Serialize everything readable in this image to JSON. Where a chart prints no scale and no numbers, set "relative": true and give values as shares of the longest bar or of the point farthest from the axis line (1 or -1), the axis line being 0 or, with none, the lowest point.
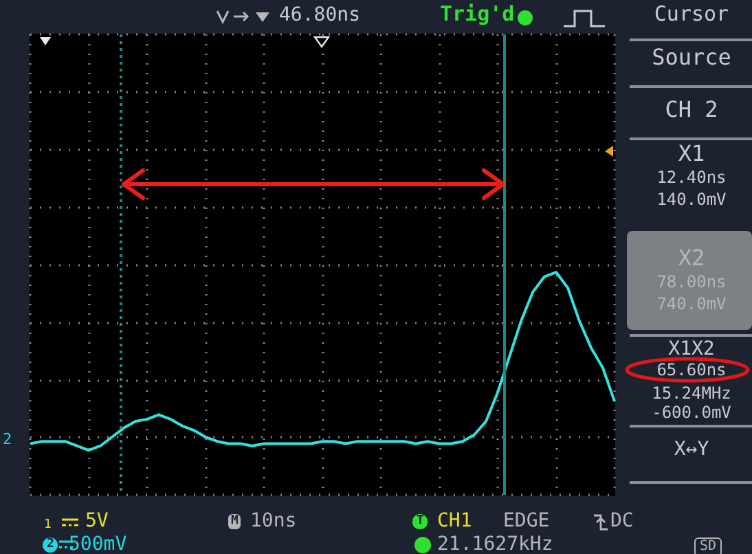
{
  "chart_data": {
    "type": "line",
    "categories": [
      null,
      null,
      null,
      null,
      null,
      null,
      null,
      null,
      null,
      null,
      null,
      null,
      null,
      null,
      null,
      null,
      null,
      null,
      null,
      null,
      null,
      null,
      null,
      null,
      null,
      null,
      null,
      null,
      null,
      null,
      null,
      null,
      null,
      null,
      null,
      null,
      null,
      null,
      null,
      null,
      null,
      null,
      null,
      null,
      null,
      null,
      null,
      null,
      null,
      null,
      null
    ],
    "relative": true,
    "series": [
      {
        "color": "#33e0e0",
        "values": [
          0.23,
          0.24,
          0.24,
          0.24,
          0.22,
          0.2,
          0.22,
          0.26,
          0.3,
          0.33,
          0.34,
          0.36,
          0.34,
          0.31,
          0.29,
          0.26,
          0.24,
          0.23,
          0.23,
          0.22,
          0.23,
          0.23,
          0.23,
          0.23,
          0.23,
          0.24,
          0.24,
          0.23,
          0.24,
          0.24,
          0.24,
          0.24,
          0.24,
          0.23,
          0.24,
          0.23,
          0.23,
          0.24,
          0.27,
          0.33,
          0.46,
          0.62,
          0.78,
          0.91,
          0.98,
          1,
          0.93,
          0.78,
          0.66,
          0.57,
          0.42
        ]
      }
    ],
    "grid": true,
    "marker": "none",
    "line_style": "solid",
    "annotations": [
      "46.80ns",
      "Trig'd",
      "Cursor",
      "Source",
      "CH 2",
      "X1",
      "12.40ns",
      "140.0mV",
      "X2",
      "78.00ns",
      "740.0mV",
      "X1X2",
      "65.60ns",
      "15.24MHz",
      "-600.0mV",
      "X↔Y",
      "1",
      "5V",
      "M",
      "10ns",
      "T",
      "CH1",
      "EDGE",
      "DC",
      "2",
      "500mV",
      "21.1627kHz",
      "SD",
      "2"
    ]
  }
}
